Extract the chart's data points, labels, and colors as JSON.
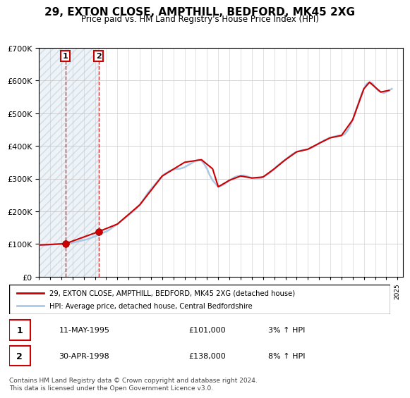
{
  "title": "29, EXTON CLOSE, AMPTHILL, BEDFORD, MK45 2XG",
  "subtitle": "Price paid vs. HM Land Registry's House Price Index (HPI)",
  "ylabel_ticks": [
    "£0",
    "£100K",
    "£200K",
    "£300K",
    "£400K",
    "£500K",
    "£600K",
    "£700K"
  ],
  "ylim": [
    0,
    700000
  ],
  "yticks": [
    0,
    100000,
    200000,
    300000,
    400000,
    500000,
    600000,
    700000
  ],
  "xlim_start": 1993.0,
  "xlim_end": 2025.5,
  "sale1": {
    "year": 1995.36,
    "price": 101000,
    "label": "1",
    "date": "11-MAY-1995",
    "price_str": "£101,000",
    "hpi_pct": "3% ↑ HPI"
  },
  "sale2": {
    "year": 1998.33,
    "price": 138000,
    "label": "2",
    "date": "30-APR-1998",
    "price_str": "£138,000",
    "hpi_pct": "8% ↑ HPI"
  },
  "legend1_label": "29, EXTON CLOSE, AMPTHILL, BEDFORD, MK45 2XG (detached house)",
  "legend2_label": "HPI: Average price, detached house, Central Bedfordshire",
  "footer": "Contains HM Land Registry data © Crown copyright and database right 2024.\nThis data is licensed under the Open Government Licence v3.0.",
  "line_color": "#cc0000",
  "hpi_color": "#aac8e8",
  "hatch_color": "#d0d8e8",
  "dashed_color": "#cc0000",
  "hatch_end_year": 1998.33,
  "hpi_data_x": [
    1993.0,
    1993.25,
    1993.5,
    1993.75,
    1994.0,
    1994.25,
    1994.5,
    1994.75,
    1995.0,
    1995.25,
    1995.5,
    1995.75,
    1996.0,
    1996.25,
    1996.5,
    1996.75,
    1997.0,
    1997.25,
    1997.5,
    1997.75,
    1998.0,
    1998.25,
    1998.5,
    1998.75,
    1999.0,
    1999.25,
    1999.5,
    1999.75,
    2000.0,
    2000.25,
    2000.5,
    2000.75,
    2001.0,
    2001.25,
    2001.5,
    2001.75,
    2002.0,
    2002.25,
    2002.5,
    2002.75,
    2003.0,
    2003.25,
    2003.5,
    2003.75,
    2004.0,
    2004.25,
    2004.5,
    2004.75,
    2005.0,
    2005.25,
    2005.5,
    2005.75,
    2006.0,
    2006.25,
    2006.5,
    2006.75,
    2007.0,
    2007.25,
    2007.5,
    2007.75,
    2008.0,
    2008.25,
    2008.5,
    2008.75,
    2009.0,
    2009.25,
    2009.5,
    2009.75,
    2010.0,
    2010.25,
    2010.5,
    2010.75,
    2011.0,
    2011.25,
    2011.5,
    2011.75,
    2012.0,
    2012.25,
    2012.5,
    2012.75,
    2013.0,
    2013.25,
    2013.5,
    2013.75,
    2014.0,
    2014.25,
    2014.5,
    2014.75,
    2015.0,
    2015.25,
    2015.5,
    2015.75,
    2016.0,
    2016.25,
    2016.5,
    2016.75,
    2017.0,
    2017.25,
    2017.5,
    2017.75,
    2018.0,
    2018.25,
    2018.5,
    2018.75,
    2019.0,
    2019.25,
    2019.5,
    2019.75,
    2020.0,
    2020.25,
    2020.5,
    2020.75,
    2021.0,
    2021.25,
    2021.5,
    2021.75,
    2022.0,
    2022.25,
    2022.5,
    2022.75,
    2023.0,
    2023.25,
    2023.5,
    2023.75,
    2024.0,
    2024.25,
    2024.5
  ],
  "hpi_data_y": [
    98000,
    97000,
    96500,
    97000,
    97500,
    98000,
    99000,
    100000,
    100500,
    101000,
    102000,
    103000,
    104000,
    106000,
    108000,
    110000,
    112000,
    114000,
    117000,
    120000,
    123000,
    127000,
    131000,
    135000,
    138000,
    143000,
    149000,
    155000,
    161000,
    168000,
    175000,
    182000,
    188000,
    195000,
    203000,
    211000,
    220000,
    232000,
    245000,
    258000,
    268000,
    278000,
    288000,
    298000,
    308000,
    315000,
    320000,
    325000,
    328000,
    330000,
    330000,
    332000,
    335000,
    340000,
    345000,
    350000,
    355000,
    358000,
    355000,
    345000,
    330000,
    310000,
    295000,
    285000,
    275000,
    278000,
    282000,
    288000,
    295000,
    300000,
    305000,
    308000,
    308000,
    310000,
    308000,
    305000,
    302000,
    300000,
    300000,
    302000,
    305000,
    310000,
    315000,
    322000,
    330000,
    338000,
    345000,
    352000,
    358000,
    365000,
    372000,
    378000,
    382000,
    385000,
    387000,
    388000,
    390000,
    393000,
    397000,
    402000,
    408000,
    413000,
    418000,
    422000,
    425000,
    428000,
    430000,
    432000,
    432000,
    435000,
    445000,
    460000,
    480000,
    505000,
    530000,
    555000,
    575000,
    590000,
    595000,
    592000,
    580000,
    570000,
    565000,
    562000,
    565000,
    570000,
    575000
  ],
  "price_line_x": [
    1993.0,
    1995.36,
    1995.36,
    1998.33,
    1998.33,
    2000.0,
    2002.0,
    2004.0,
    2006.0,
    2007.5,
    2008.5,
    2009.0,
    2010.0,
    2011.0,
    2012.0,
    2013.0,
    2014.0,
    2015.0,
    2016.0,
    2017.0,
    2018.0,
    2019.0,
    2020.0,
    2021.0,
    2022.0,
    2022.5,
    2023.0,
    2023.5,
    2024.25
  ],
  "price_line_y": [
    97000,
    101000,
    101000,
    138000,
    138000,
    161000,
    220000,
    308000,
    350000,
    358000,
    330000,
    275000,
    295000,
    308000,
    302000,
    305000,
    330000,
    358000,
    382000,
    390000,
    408000,
    425000,
    432000,
    480000,
    575000,
    595000,
    580000,
    565000,
    570000
  ],
  "bg_color": "#ffffff",
  "plot_bg_color": "#ffffff",
  "grid_color": "#cccccc"
}
